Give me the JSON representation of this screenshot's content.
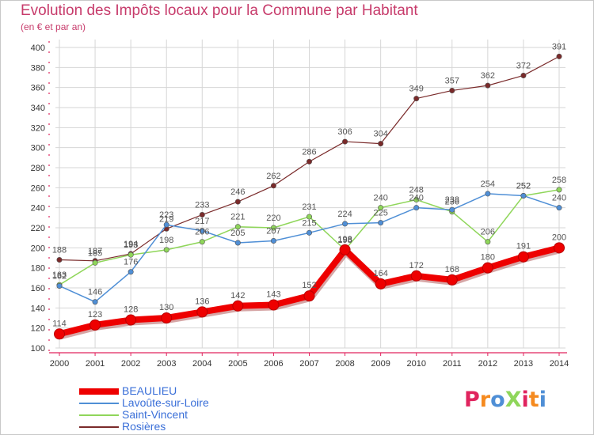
{
  "header": {
    "title": "Evolution des Impôts locaux pour la Commune par Habitant",
    "subtitle": "(en € et par an)"
  },
  "colors": {
    "title": "#c73b6b",
    "axis": "#e0245e",
    "grid": "#d6d6d6",
    "legend_text": "#3a6fd8"
  },
  "chart_data": {
    "type": "line",
    "title": "Evolution des Impôts locaux pour la Commune par Habitant",
    "subtitle": "(en € et par an)",
    "xlabel": "",
    "ylabel": "",
    "x": [
      "2000",
      "2001",
      "2002",
      "2003",
      "2004",
      "2005",
      "2006",
      "2007",
      "2008",
      "2009",
      "2010",
      "2011",
      "2012",
      "2013",
      "2014"
    ],
    "ylim": [
      100,
      400
    ],
    "yticks": [
      100,
      120,
      140,
      160,
      180,
      200,
      220,
      240,
      260,
      280,
      300,
      320,
      340,
      360,
      380,
      400
    ],
    "grid": true,
    "legend_position": "bottom-left",
    "series": [
      {
        "name": "BEAULIEU",
        "color": "#ee0000",
        "width": 8,
        "values": [
          114,
          123,
          128,
          130,
          136,
          142,
          143,
          152,
          198,
          164,
          172,
          168,
          180,
          191,
          200
        ],
        "labels": [
          "114",
          "123",
          "128",
          "130",
          "136",
          "142",
          "143",
          "152",
          "198",
          "164",
          "172",
          "168",
          "180",
          "191",
          "200"
        ]
      },
      {
        "name": "Lavoûte-sur-Loire",
        "color": "#4f8fd6",
        "width": 1.5,
        "values": [
          162,
          146,
          176,
          223,
          217,
          205,
          207,
          215,
          224,
          225,
          240,
          238,
          254,
          252,
          240
        ],
        "labels": [
          "162",
          "146",
          "176",
          "223",
          "217",
          "205",
          "207",
          "215",
          "224",
          "225",
          "240",
          "238",
          "254",
          "252",
          "240"
        ]
      },
      {
        "name": "Saint-Vincent",
        "color": "#8fd65a",
        "width": 1.5,
        "values": [
          163,
          185,
          193,
          198,
          206,
          221,
          220,
          231,
          198,
          240,
          248,
          236,
          206,
          252,
          258
        ],
        "labels": [
          "163",
          "185",
          "193",
          "198",
          "206",
          "221",
          "220",
          "231",
          "198",
          "240",
          "248",
          "236",
          "206",
          "252",
          "258"
        ]
      },
      {
        "name": "Rosières",
        "color": "#7a2a2a",
        "width": 1.2,
        "values": [
          188,
          187,
          194,
          219,
          233,
          246,
          262,
          286,
          306,
          304,
          349,
          357,
          362,
          372,
          391
        ],
        "labels": [
          "188",
          "187",
          "194",
          "219",
          "233",
          "246",
          "262",
          "286",
          "306",
          "304",
          "349",
          "357",
          "362",
          "372",
          "391"
        ]
      }
    ]
  },
  "legend": {
    "items": [
      {
        "label": "BEAULIEU"
      },
      {
        "label": "Lavoûte-sur-Loire"
      },
      {
        "label": "Saint-Vincent"
      },
      {
        "label": "Rosières"
      }
    ]
  },
  "logo": {
    "text": "ProXiti",
    "letter_colors": [
      "#e0245e",
      "#f58a1f",
      "#4f8fd6",
      "#8fd65a",
      "#e0245e",
      "#f58a1f",
      "#4f8fd6"
    ]
  }
}
